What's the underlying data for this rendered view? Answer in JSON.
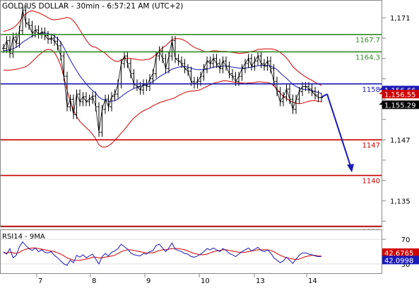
{
  "chart_data": {
    "type": "line",
    "title": "GOLD/US DOLLAR - 30min - 6:57:21 AM (UTC+2)",
    "x_tick_labels": [
      "7",
      "8",
      "9",
      "10",
      "13",
      "14"
    ],
    "y_ticks": [
      1171,
      1167,
      1163,
      1159,
      1155,
      1151,
      1147,
      1143,
      1139,
      1135,
      1131
    ],
    "y_tick_labels": [
      "1,171",
      "",
      "",
      "",
      "",
      "",
      "1,147",
      "",
      "",
      "1,135",
      ""
    ],
    "ylim": [
      1129.8,
      1174.5
    ],
    "levels": [
      {
        "label": "1167.7",
        "value": 1167.7,
        "color": "#2e8b22"
      },
      {
        "label": "1164.3",
        "value": 1164.3,
        "color": "#2e8b22"
      },
      {
        "label": "1158",
        "value": 1158,
        "color": "#1a1ab5"
      },
      {
        "label": "1147",
        "value": 1147,
        "color": "#c80000"
      },
      {
        "label": "1140",
        "value": 1140,
        "color": "#c80000"
      },
      {
        "label": "1130",
        "value": 1130,
        "color": "#c80000"
      }
    ],
    "price_labels": [
      {
        "label": "1,156.66",
        "value": 1156.66,
        "bg": "#1a1ab5"
      },
      {
        "label": "1,156.55",
        "value": 1156.55,
        "bg": "#d00000"
      },
      {
        "label": "1,155.29",
        "value": 1155.29,
        "bg": "#000000"
      }
    ],
    "arrow": {
      "from": 1156.0,
      "to": 1140.6
    },
    "price_series": [
      1165.0,
      1166.5,
      1164.0,
      1167.2,
      1166.0,
      1168.5,
      1172.5,
      1170.0,
      1169.5,
      1168.0,
      1168.6,
      1167.8,
      1168.2,
      1167.5,
      1166.8,
      1167.0,
      1166.4,
      1165.5,
      1163.5,
      1159.5,
      1153.5,
      1155.0,
      1152.0,
      1156.0,
      1154.5,
      1155.5,
      1154.5,
      1155.0,
      1155.6,
      1153.5,
      1148.5,
      1153.0,
      1155.0,
      1153.5,
      1155.5,
      1156.0,
      1158.0,
      1162.0,
      1163.5,
      1162.0,
      1160.0,
      1158.0,
      1157.5,
      1156.8,
      1158.0,
      1157.5,
      1159.0,
      1160.0,
      1163.5,
      1164.5,
      1163.0,
      1161.0,
      1163.5,
      1166.5,
      1163.0,
      1162.5,
      1162.0,
      1161.0,
      1160.5,
      1158.5,
      1158.0,
      1158.5,
      1159.5,
      1161.0,
      1162.5,
      1162.0,
      1163.0,
      1162.0,
      1161.0,
      1162.5,
      1161.5,
      1160.0,
      1159.5,
      1158.5,
      1159.5,
      1161.0,
      1162.0,
      1163.0,
      1161.5,
      1162.5,
      1163.5,
      1162.0,
      1161.5,
      1162.5,
      1161.0,
      1158.5,
      1156.5,
      1154.5,
      1155.5,
      1157.0,
      1155.0,
      1153.0,
      1155.0,
      1156.5,
      1157.5,
      1157.5,
      1157.0,
      1156.5,
      1155.8,
      1155.3,
      1155.3
    ],
    "ma_series": [
      1164.5,
      1164.6,
      1164.7,
      1164.9,
      1165.2,
      1165.6,
      1166.2,
      1166.6,
      1167.0,
      1167.4,
      1167.6,
      1167.8,
      1167.9,
      1168.0,
      1167.9,
      1167.7,
      1167.4,
      1166.9,
      1166.2,
      1165.1,
      1163.9,
      1162.7,
      1161.6,
      1160.6,
      1159.6,
      1158.8,
      1158.0,
      1157.3,
      1156.7,
      1156.2,
      1155.4,
      1155.0,
      1154.8,
      1154.6,
      1154.6,
      1154.7,
      1155.0,
      1155.5,
      1156.0,
      1156.4,
      1156.8,
      1157.1,
      1157.3,
      1157.5,
      1157.7,
      1157.9,
      1158.1,
      1158.5,
      1158.9,
      1159.4,
      1159.8,
      1160.1,
      1160.5,
      1160.9,
      1161.1,
      1161.3,
      1161.4,
      1161.4,
      1161.3,
      1161.1,
      1160.9,
      1160.8,
      1160.8,
      1160.8,
      1160.9,
      1161.1,
      1161.3,
      1161.4,
      1161.4,
      1161.5,
      1161.5,
      1161.4,
      1161.3,
      1161.2,
      1161.1,
      1161.1,
      1161.1,
      1161.2,
      1161.3,
      1161.4,
      1161.6,
      1161.6,
      1161.6,
      1161.6,
      1161.5,
      1161.2,
      1160.8,
      1160.2,
      1159.6,
      1159.1,
      1158.5,
      1157.9,
      1157.5,
      1157.2,
      1157.0,
      1156.9,
      1156.8,
      1156.7,
      1156.5,
      1156.3,
      1156.1
    ],
    "band_width": [
      3.8,
      3.9,
      4.0,
      4.1,
      4.3,
      4.6,
      5.0,
      5.2,
      5.2,
      5.0,
      4.6,
      4.2,
      3.8,
      3.4,
      3.1,
      3.0,
      3.2,
      3.8,
      4.6,
      5.8,
      7.2,
      8.2,
      8.8,
      9.0,
      9.0,
      8.8,
      8.6,
      8.5,
      8.6,
      9.0,
      9.4,
      9.4,
      9.2,
      8.8,
      8.3,
      7.8,
      7.4,
      7.2,
      7.0,
      6.6,
      6.2,
      5.8,
      5.5,
      5.2,
      5.0,
      4.9,
      4.8,
      4.8,
      4.9,
      5.1,
      5.3,
      5.4,
      5.6,
      5.8,
      5.8,
      5.6,
      5.4,
      5.1,
      4.8,
      4.5,
      4.3,
      4.1,
      3.9,
      3.6,
      3.4,
      3.3,
      3.2,
      3.1,
      3.0,
      2.9,
      2.9,
      2.9,
      2.9,
      2.9,
      2.9,
      2.9,
      3.0,
      3.0,
      3.1,
      3.1,
      3.2,
      3.2,
      3.3,
      3.3,
      3.4,
      3.6,
      3.8,
      4.0,
      4.1,
      4.0,
      3.8,
      3.5,
      3.3,
      3.1,
      2.8,
      2.5,
      2.2,
      2.0,
      1.8,
      1.7,
      1.6
    ],
    "rsi_panel": {
      "title": "RSI14 - 9MA",
      "y_ticks": [
        70,
        30
      ],
      "ylim": [
        15,
        85
      ],
      "value_labels": [
        {
          "label": "42.6765",
          "value": 42.6765,
          "bg": "#d00000"
        },
        {
          "label": "42.0998",
          "value": 42.0998,
          "bg": "#1a1ab5"
        }
      ],
      "rsi_series": [
        50,
        46,
        55,
        40,
        44,
        58,
        66,
        60,
        55,
        52,
        56,
        50,
        53,
        49,
        48,
        50,
        44,
        40,
        35,
        30,
        28,
        36,
        32,
        44,
        41,
        45,
        40,
        43,
        46,
        38,
        30,
        42,
        47,
        43,
        49,
        51,
        55,
        62,
        58,
        54,
        48,
        45,
        44,
        43,
        47,
        46,
        50,
        52,
        60,
        62,
        56,
        50,
        56,
        64,
        54,
        52,
        50,
        47,
        46,
        42,
        41,
        43,
        46,
        50,
        55,
        53,
        56,
        53,
        50,
        55,
        52,
        47,
        45,
        42,
        46,
        50,
        53,
        56,
        51,
        54,
        57,
        52,
        50,
        53,
        48,
        40,
        36,
        32,
        35,
        41,
        36,
        31,
        38,
        44,
        48,
        48,
        46,
        45,
        43,
        42,
        42.1
      ],
      "ma_series": [
        48,
        48,
        49,
        48,
        47,
        49,
        52,
        54,
        55,
        56,
        56,
        55,
        54,
        53,
        52,
        51,
        50,
        48,
        46,
        43,
        40,
        38,
        36,
        36,
        36,
        37,
        38,
        39,
        41,
        41,
        40,
        40,
        41,
        42,
        43,
        44,
        47,
        50,
        52,
        53,
        53,
        52,
        51,
        50,
        49,
        48,
        48,
        48,
        50,
        52,
        53,
        53,
        54,
        55,
        55,
        55,
        54,
        53,
        51,
        49,
        47,
        46,
        45,
        45,
        46,
        48,
        50,
        51,
        52,
        53,
        53,
        52,
        51,
        50,
        49,
        49,
        49,
        50,
        51,
        52,
        53,
        53,
        53,
        53,
        52,
        50,
        47,
        44,
        42,
        40,
        39,
        38,
        37,
        38,
        40,
        42,
        43,
        44,
        44,
        43,
        42.7
      ]
    }
  }
}
